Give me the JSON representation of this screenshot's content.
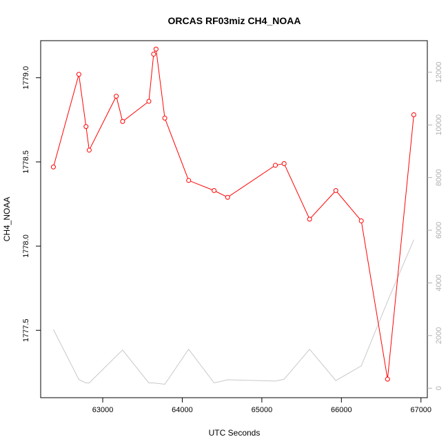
{
  "chart_data": {
    "type": "line",
    "title": "ORCAS RF03miz CH4_NOAA",
    "xlabel": "UTC Seconds",
    "ylabel": "CH4_NOAA",
    "xlim": [
      62220,
      67080
    ],
    "ylim": [
      1777.1,
      1779.22
    ],
    "y2lim": [
      -360,
      13200
    ],
    "x_ticks": [
      63000,
      64000,
      65000,
      66000,
      67000
    ],
    "y_ticks": [
      1777.5,
      1778.0,
      1778.5,
      1779.0
    ],
    "y_tick_labels": [
      "1777.5",
      "1778.0",
      "1778.5",
      "1779.0"
    ],
    "y2_ticks": [
      0,
      2000,
      4000,
      6000,
      8000,
      10000,
      12000
    ],
    "grid": false,
    "legend": "none",
    "series": [
      {
        "axis": "left",
        "color": "#ff0000",
        "marker": "open-circle",
        "x": [
          62380,
          62700,
          62790,
          62830,
          63170,
          63250,
          63580,
          63640,
          63670,
          63780,
          64080,
          64400,
          64570,
          65170,
          65280,
          65600,
          65930,
          66250,
          66580,
          66910
        ],
        "y": [
          1778.47,
          1779.02,
          1778.71,
          1778.57,
          1778.89,
          1778.74,
          1778.86,
          1779.14,
          1779.17,
          1778.76,
          1778.39,
          1778.33,
          1778.29,
          1778.48,
          1778.49,
          1778.16,
          1778.33,
          1778.15,
          1777.21,
          1778.78
        ]
      },
      {
        "axis": "right",
        "color": "#c8c8c8",
        "marker": "none",
        "x": [
          62380,
          62700,
          62790,
          62830,
          63170,
          63250,
          63580,
          63640,
          63670,
          63780,
          64080,
          64400,
          64570,
          65170,
          65280,
          65600,
          65930,
          66250,
          66580,
          66910
        ],
        "y": [
          2230,
          330,
          200,
          200,
          1220,
          1450,
          200,
          200,
          190,
          150,
          1480,
          200,
          320,
          270,
          340,
          1480,
          290,
          850,
          3300,
          5640
        ]
      }
    ]
  }
}
